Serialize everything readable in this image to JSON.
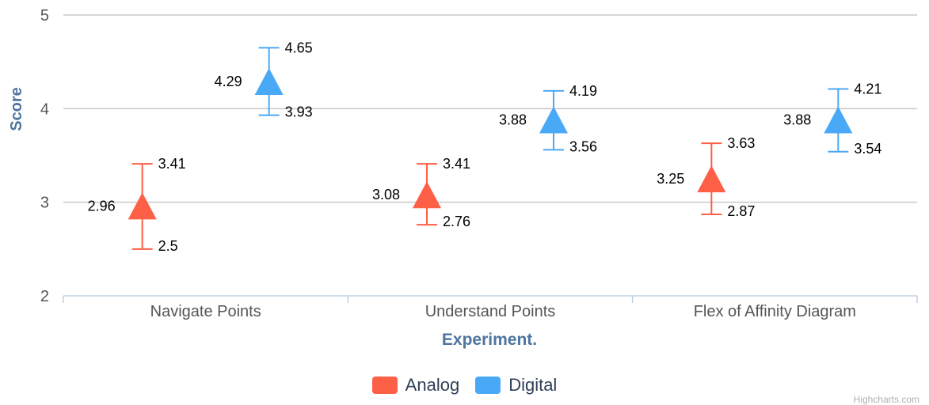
{
  "chart_data": {
    "type": "scatter",
    "title": "",
    "xlabel": "Experiment.",
    "ylabel": "Score",
    "ylim": [
      2,
      5
    ],
    "yticks": [
      "2",
      "3",
      "4",
      "5"
    ],
    "categories": [
      "Navigate Points",
      "Understand Points",
      "Flex of Affinity Diagram"
    ],
    "grid": true,
    "legend_position": "bottom-center",
    "series": [
      {
        "name": "Analog",
        "color": "#fd5f47",
        "marker": "triangle",
        "values": [
          2.96,
          3.08,
          3.25
        ],
        "value_labels": [
          "2.96",
          "3.08",
          "3.25"
        ],
        "error_low": [
          2.5,
          2.76,
          2.87
        ],
        "error_low_labels": [
          "2.5",
          "2.76",
          "2.87"
        ],
        "error_high": [
          3.41,
          3.41,
          3.63
        ],
        "error_high_labels": [
          "3.41",
          "3.41",
          "3.63"
        ]
      },
      {
        "name": "Digital",
        "color": "#4aa9f7",
        "marker": "triangle",
        "values": [
          4.29,
          3.88,
          3.88
        ],
        "value_labels": [
          "4.29",
          "3.88",
          "3.88"
        ],
        "error_low": [
          3.93,
          3.56,
          3.54
        ],
        "error_low_labels": [
          "3.93",
          "3.56",
          "3.54"
        ],
        "error_high": [
          4.65,
          4.19,
          4.21
        ],
        "error_high_labels": [
          "4.65",
          "4.19",
          "4.21"
        ]
      }
    ]
  },
  "credits": "Highcharts.com"
}
